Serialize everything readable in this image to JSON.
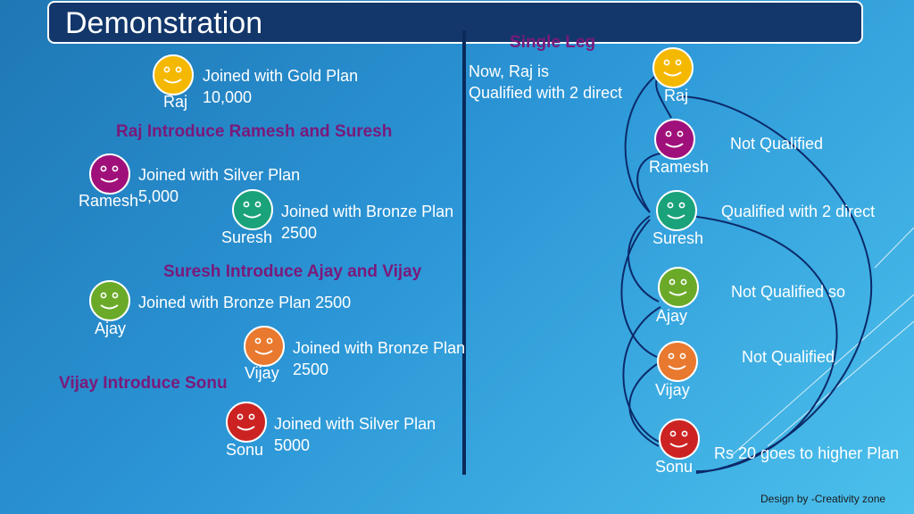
{
  "title": "Demonstration",
  "left": {
    "raj": {
      "name": "Raj",
      "text1": "Joined with Gold Plan",
      "text2": "10,000"
    },
    "heading1": "Raj Introduce Ramesh and Suresh",
    "ramesh": {
      "name": "Ramesh",
      "text1": "Joined with Silver Plan",
      "text2": "5,000"
    },
    "suresh": {
      "name": "Suresh",
      "text1": "Joined with Bronze Plan",
      "text2": "2500"
    },
    "heading2": "Suresh Introduce Ajay and Vijay",
    "ajay": {
      "name": "Ajay",
      "text1": "Joined with Bronze Plan 2500"
    },
    "vijay": {
      "name": "Vijay",
      "text1": "Joined with Bronze Plan",
      "text2": "2500"
    },
    "heading3": "Vijay Introduce Sonu",
    "sonu": {
      "name": "Sonu",
      "text1": "Joined with Silver Plan",
      "text2": "5000"
    }
  },
  "right": {
    "heading": "Single Leg",
    "note1": "Now, Raj is",
    "note2": "Qualified with 2 direct",
    "raj": {
      "name": "Raj"
    },
    "ramesh": {
      "name": "Ramesh",
      "status": "Not Qualified"
    },
    "suresh": {
      "name": "Suresh",
      "status": "Qualified with 2 direct"
    },
    "ajay": {
      "name": "Ajay",
      "status": "Not Qualified so"
    },
    "vijay": {
      "name": "Vijay",
      "status": "Not Qualified"
    },
    "sonu": {
      "name": "Sonu",
      "status": "Rs 20 goes to higher Plan"
    }
  },
  "footer": "Design by -Creativity zone",
  "colors": {
    "gold": "#f5b800",
    "purple": "#a0107a",
    "teal": "#1aa27a",
    "green": "#6aaa28",
    "orange": "#e8792e",
    "red": "#cc2222",
    "heading": "#7a1a7a",
    "title_bg": "#13376b"
  }
}
